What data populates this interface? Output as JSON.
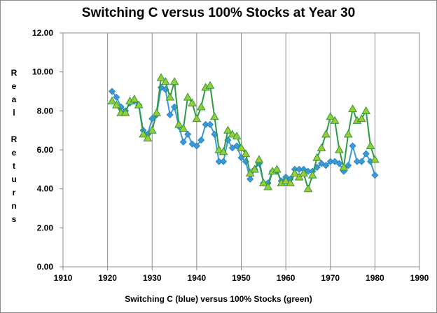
{
  "chart_data": {
    "type": "line",
    "title": "Switching C versus 100% Stocks at Year 30",
    "xlabel": "Switching C (blue) versus 100% Stocks (green)",
    "ylabel": "Real Returns",
    "xlim": [
      1910,
      1990
    ],
    "ylim": [
      0,
      12
    ],
    "x_ticks": [
      "1910",
      "1920",
      "1930",
      "1940",
      "1950",
      "1960",
      "1970",
      "1980",
      "1990"
    ],
    "y_ticks": [
      "0.00",
      "2.00",
      "4.00",
      "6.00",
      "8.00",
      "10.00",
      "12.00"
    ],
    "grid": "vertical",
    "colors": {
      "blue": "#3a9ad9",
      "green": "#2e9a44",
      "triangle_fill": "#9acd32"
    },
    "x": [
      1921,
      1922,
      1923,
      1924,
      1925,
      1926,
      1927,
      1928,
      1929,
      1930,
      1931,
      1932,
      1933,
      1934,
      1935,
      1936,
      1937,
      1938,
      1939,
      1940,
      1941,
      1942,
      1943,
      1944,
      1945,
      1946,
      1947,
      1948,
      1949,
      1950,
      1951,
      1952,
      1953,
      1954,
      1955,
      1956,
      1957,
      1958,
      1959,
      1960,
      1961,
      1962,
      1963,
      1964,
      1965,
      1966,
      1967,
      1968,
      1969,
      1970,
      1971,
      1972,
      1973,
      1974,
      1975,
      1976,
      1977,
      1978,
      1979,
      1980
    ],
    "series": [
      {
        "marker": "diamond",
        "values": [
          9.0,
          8.7,
          8.2,
          8.0,
          8.4,
          8.5,
          8.3,
          7.0,
          6.8,
          7.6,
          7.8,
          9.2,
          9.1,
          7.8,
          8.2,
          7.2,
          6.4,
          6.8,
          6.3,
          6.2,
          6.5,
          7.3,
          7.3,
          6.8,
          5.4,
          5.4,
          6.5,
          6.1,
          6.2,
          5.6,
          5.4,
          4.5,
          5.0,
          5.3,
          4.3,
          4.3,
          4.9,
          4.9,
          4.4,
          4.6,
          4.5,
          5.0,
          5.0,
          5.0,
          4.9,
          4.9,
          5.1,
          5.3,
          5.2,
          5.4,
          5.4,
          5.3,
          4.9,
          5.2,
          6.2,
          5.4,
          5.4,
          5.8,
          5.4,
          4.7
        ]
      },
      {
        "marker": "triangle",
        "values": [
          8.5,
          8.3,
          7.9,
          7.9,
          8.5,
          8.6,
          8.3,
          6.8,
          6.6,
          7.0,
          7.9,
          9.7,
          9.5,
          8.7,
          9.5,
          7.3,
          7.1,
          8.7,
          8.4,
          7.6,
          8.2,
          9.2,
          9.3,
          7.7,
          6.0,
          5.9,
          7.0,
          6.8,
          6.7,
          6.1,
          5.8,
          4.8,
          5.0,
          5.5,
          4.3,
          4.1,
          4.9,
          5.0,
          4.3,
          4.4,
          4.3,
          4.8,
          4.6,
          4.8,
          4.0,
          4.7,
          5.6,
          6.1,
          6.8,
          7.7,
          7.5,
          6.0,
          5.1,
          6.8,
          8.1,
          7.5,
          7.6,
          8.0,
          6.2,
          5.5
        ]
      }
    ]
  }
}
